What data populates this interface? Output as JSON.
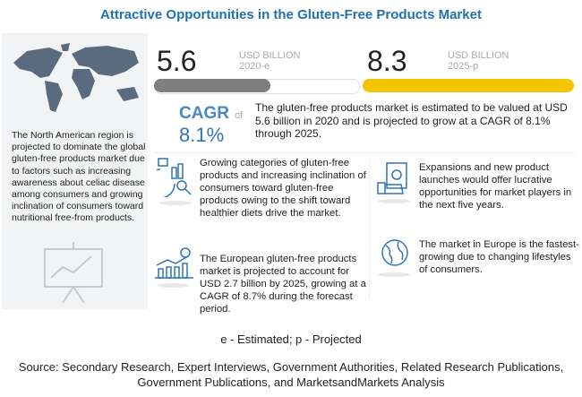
{
  "title": "Attractive Opportunities in the Gluten-Free Products Market",
  "left_panel": {
    "text": "The North American region is projected to dominate the global gluten-free products market due to factors such as increasing awareness about celiac disease among consumers and growing inclination of consumers toward nutritional free-from products."
  },
  "metrics": {
    "start": {
      "value": "5.6",
      "unit": "USD BILLION",
      "year": "2020-e"
    },
    "end": {
      "value": "8.3",
      "unit": "USD BILLION",
      "year": "2025-p"
    },
    "cagr_label": "CAGR",
    "cagr_of": "of",
    "cagr_value": "8.1%",
    "description": "The gluten-free products market is estimated to be valued at USD 5.6 billion in 2020 and is projected to grow at a CAGR of 8.1% through 2025.",
    "colors": {
      "start_bar": "#7f7f7f",
      "end_bar": "#f5c400",
      "cagr": "#2e75b6"
    }
  },
  "items": [
    {
      "icon": "analytics-icon",
      "text": "Growing categories of gluten-free products and increasing inclination of consumers toward gluten-free products owing to the shift toward healthier diets drive the market."
    },
    {
      "icon": "money-hand-icon",
      "text": "Expansions and new product launches would offer lucrative opportunities for market players in the next five years."
    },
    {
      "icon": "growth-chart-icon",
      "text": "The European gluten-free products market is projected to account for USD 2.7 billion by 2025, growing at a CAGR of 8.7% during the forecast period."
    },
    {
      "icon": "globe-icon",
      "text": "The market in Europe is the fastest-growing due to changing lifestyles of consumers."
    }
  ],
  "note": "e - Estimated; p - Projected",
  "source": [
    "Source: Secondary Research, Expert Interviews, Government Authorities, Related Research Publications,",
    "Government Publications, and MarketsandMarkets Analysis"
  ]
}
